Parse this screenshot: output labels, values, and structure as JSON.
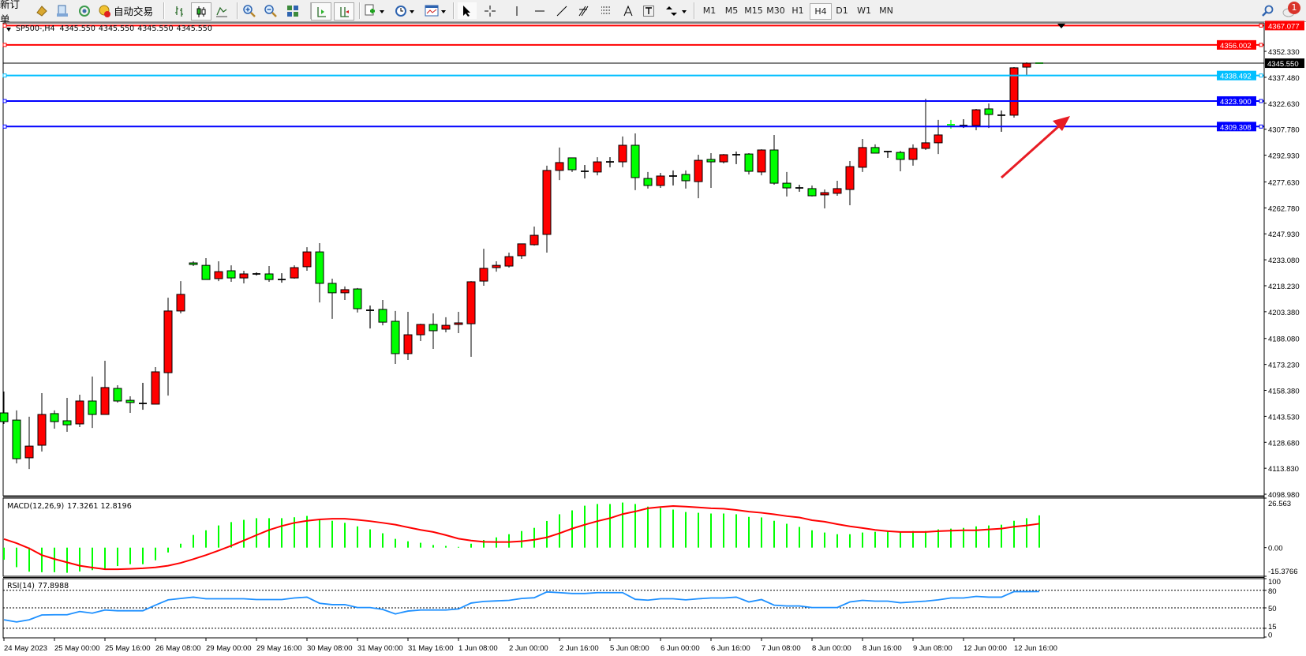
{
  "toolbar": {
    "new_order_label": "新订单",
    "auto_trading_label": "自动交易",
    "timeframes": [
      "M1",
      "M5",
      "M15",
      "M30",
      "H1",
      "H4",
      "D1",
      "W1",
      "MN"
    ],
    "active_timeframe": "H4",
    "notification_count": "1",
    "icons": [
      "new-order-icon",
      "market-watch-icon",
      "navigator-icon",
      "signals-icon",
      "auto-trading-icon",
      "bar-chart-icon",
      "candlestick-chart-icon",
      "line-chart-icon",
      "zoom-in-icon",
      "zoom-out-icon",
      "tile-windows-icon",
      "auto-scroll-icon",
      "chart-shift-icon",
      "indicators-icon",
      "periods-icon",
      "templates-icon",
      "cursor-icon",
      "crosshair-icon",
      "vertical-line-icon",
      "horizontal-line-icon",
      "trendline-icon",
      "fibonacci-icon",
      "fibonacci-fan-icon",
      "text-icon",
      "text-label-icon",
      "arrows-icon",
      "search-icon",
      "notifications-icon"
    ]
  },
  "chart": {
    "symbol_header": "SP500-,H4",
    "ohlc": [
      "4345.550",
      "4345.550",
      "4345.550",
      "4345.550"
    ],
    "colors": {
      "bull": "#ff0000",
      "bear": "#00ff00",
      "outline": "#000000",
      "level_red": "#ff0000",
      "level_lightblue": "#00bfff",
      "level_blue": "#0000ff",
      "arrow": "#e81c24",
      "macd_hist": "#00ff00",
      "macd_signal": "#ff0000",
      "rsi": "#1e90ff"
    },
    "levels": [
      {
        "price": 4367.077,
        "label": "4367.077",
        "color": "#ff0000"
      },
      {
        "price": 4356.002,
        "label": "4356.002",
        "color": "#ff0000"
      },
      {
        "price": 4338.492,
        "label": "4338.492",
        "color": "#00bfff"
      },
      {
        "price": 4323.9,
        "label": "4323.900",
        "color": "#0000ff"
      },
      {
        "price": 4309.308,
        "label": "4309.308",
        "color": "#0000ff"
      }
    ],
    "current_price": {
      "price": 4345.55,
      "label": "4345.550"
    }
  },
  "chart_data": [
    {
      "type": "candlestick",
      "title": "SP500-,H4",
      "price_range": [
        4098.1,
        4368.6
      ],
      "y_ticks": [
        "4352.330",
        "4337.480",
        "4322.630",
        "4307.780",
        "4292.930",
        "4277.630",
        "4262.780",
        "4247.930",
        "4233.080",
        "4218.230",
        "4203.380",
        "4188.080",
        "4173.230",
        "4158.380",
        "4143.530",
        "4128.680",
        "4113.830",
        "4098.980"
      ],
      "x_ticks": [
        {
          "bar": 0,
          "label": "24 May 2023"
        },
        {
          "bar": 4,
          "label": "25 May 00:00"
        },
        {
          "bar": 8,
          "label": "25 May 16:00"
        },
        {
          "bar": 12,
          "label": "26 May 08:00"
        },
        {
          "bar": 16,
          "label": "29 May 00:00"
        },
        {
          "bar": 20,
          "label": "29 May 16:00"
        },
        {
          "bar": 24,
          "label": "30 May 08:00"
        },
        {
          "bar": 28,
          "label": "31 May 00:00"
        },
        {
          "bar": 32,
          "label": "31 May 16:00"
        },
        {
          "bar": 36,
          "label": "1 Jun 08:00"
        },
        {
          "bar": 40,
          "label": "2 Jun 00:00"
        },
        {
          "bar": 44,
          "label": "2 Jun 16:00"
        },
        {
          "bar": 48,
          "label": "5 Jun 08:00"
        },
        {
          "bar": 52,
          "label": "6 Jun 00:00"
        },
        {
          "bar": 56,
          "label": "6 Jun 16:00"
        },
        {
          "bar": 60,
          "label": "7 Jun 08:00"
        },
        {
          "bar": 64,
          "label": "8 Jun 00:00"
        },
        {
          "bar": 68,
          "label": "8 Jun 16:00"
        },
        {
          "bar": 72,
          "label": "9 Jun 08:00"
        },
        {
          "bar": 76,
          "label": "12 Jun 00:00"
        },
        {
          "bar": 80,
          "label": "12 Jun 16:00"
        }
      ],
      "ohlc": [
        [
          4145.5,
          4157.7,
          4139.2,
          4140.5
        ],
        [
          4141.4,
          4146.9,
          4116.6,
          4119.3
        ],
        [
          4119.8,
          4143.3,
          4113.4,
          4126.5
        ],
        [
          4127.0,
          4156.8,
          4123.4,
          4144.6
        ],
        [
          4145.1,
          4146.9,
          4136.5,
          4140.5
        ],
        [
          4141.0,
          4154.1,
          4134.7,
          4138.7
        ],
        [
          4139.2,
          4155.9,
          4137.4,
          4152.3
        ],
        [
          4152.3,
          4166.3,
          4136.9,
          4144.6
        ],
        [
          4144.6,
          4175.3,
          4144.6,
          4160.0
        ],
        [
          4159.5,
          4161.3,
          4151.4,
          4152.3
        ],
        [
          4152.7,
          4155.0,
          4145.5,
          4151.4
        ],
        [
          4150.9,
          4162.7,
          4147.3,
          4150.9
        ],
        [
          4150.5,
          4171.7,
          4150.5,
          4169.0
        ],
        [
          4168.5,
          4211.4,
          4155.4,
          4203.8
        ],
        [
          4203.8,
          4220.9,
          4202.4,
          4213.3
        ],
        [
          4231.3,
          4232.2,
          4229.5,
          4230.4
        ],
        [
          4229.9,
          4234.0,
          4221.8,
          4221.8
        ],
        [
          4222.3,
          4232.2,
          4220.9,
          4226.3
        ],
        [
          4226.8,
          4229.9,
          4220.5,
          4222.7
        ],
        [
          4222.7,
          4226.8,
          4219.6,
          4225.0
        ],
        [
          4225.0,
          4225.9,
          4224.1,
          4225.0
        ],
        [
          4225.0,
          4229.5,
          4220.5,
          4221.8
        ],
        [
          4221.8,
          4225.4,
          4220.0,
          4221.8
        ],
        [
          4222.7,
          4229.9,
          4222.3,
          4228.6
        ],
        [
          4229.1,
          4240.3,
          4226.8,
          4237.6
        ],
        [
          4237.6,
          4242.6,
          4208.7,
          4219.6
        ],
        [
          4219.6,
          4222.3,
          4199.3,
          4214.2
        ],
        [
          4214.2,
          4217.8,
          4210.1,
          4216.0
        ],
        [
          4216.4,
          4216.9,
          4202.9,
          4205.1
        ],
        [
          4204.2,
          4206.9,
          4193.8,
          4204.2
        ],
        [
          4204.7,
          4210.1,
          4195.6,
          4197.4
        ],
        [
          4197.9,
          4203.8,
          4173.5,
          4179.4
        ],
        [
          4179.4,
          4203.3,
          4175.8,
          4190.2
        ],
        [
          4190.2,
          4196.5,
          4186.6,
          4196.1
        ],
        [
          4196.1,
          4202.4,
          4182.1,
          4192.5
        ],
        [
          4193.4,
          4200.2,
          4191.6,
          4195.6
        ],
        [
          4196.1,
          4203.3,
          4191.1,
          4197.0
        ],
        [
          4196.5,
          4220.9,
          4177.6,
          4220.5
        ],
        [
          4220.9,
          4239.4,
          4218.2,
          4228.2
        ],
        [
          4228.6,
          4232.2,
          4226.3,
          4229.9
        ],
        [
          4229.5,
          4237.2,
          4228.6,
          4234.9
        ],
        [
          4235.4,
          4242.2,
          4233.6,
          4242.2
        ],
        [
          4241.7,
          4252.1,
          4241.2,
          4247.1
        ],
        [
          4247.6,
          4286.9,
          4237.2,
          4284.2
        ],
        [
          4284.2,
          4297.3,
          4278.7,
          4288.7
        ],
        [
          4291.4,
          4291.4,
          4283.3,
          4284.6
        ],
        [
          4283.7,
          4287.3,
          4279.6,
          4283.7
        ],
        [
          4283.3,
          4291.8,
          4281.4,
          4289.1
        ],
        [
          4289.1,
          4291.8,
          4286.0,
          4289.1
        ],
        [
          4289.1,
          4303.6,
          4286.0,
          4298.6
        ],
        [
          4298.6,
          4305.4,
          4272.9,
          4280.1
        ],
        [
          4279.6,
          4283.3,
          4273.8,
          4275.6
        ],
        [
          4275.6,
          4282.8,
          4274.2,
          4281.0
        ],
        [
          4281.0,
          4284.2,
          4275.6,
          4281.0
        ],
        [
          4281.9,
          4284.2,
          4273.8,
          4278.3
        ],
        [
          4277.8,
          4293.2,
          4268.3,
          4290.0
        ],
        [
          4290.5,
          4294.1,
          4274.2,
          4289.1
        ],
        [
          4289.1,
          4293.6,
          4288.2,
          4293.2
        ],
        [
          4293.2,
          4295.0,
          4287.8,
          4293.2
        ],
        [
          4293.6,
          4294.1,
          4281.9,
          4283.7
        ],
        [
          4283.3,
          4296.3,
          4281.4,
          4295.9
        ],
        [
          4295.9,
          4304.5,
          4276.0,
          4276.9
        ],
        [
          4276.9,
          4283.3,
          4269.3,
          4274.2
        ],
        [
          4274.2,
          4276.0,
          4272.0,
          4274.2
        ],
        [
          4273.8,
          4275.6,
          4269.3,
          4269.7
        ],
        [
          4270.2,
          4273.3,
          4262.5,
          4271.5
        ],
        [
          4271.1,
          4278.3,
          4269.7,
          4273.8
        ],
        [
          4273.3,
          4289.6,
          4264.3,
          4286.4
        ],
        [
          4286.0,
          4302.2,
          4283.3,
          4297.3
        ],
        [
          4297.3,
          4299.1,
          4294.1,
          4294.1
        ],
        [
          4295.0,
          4295.4,
          4291.4,
          4295.0
        ],
        [
          4294.5,
          4295.4,
          4283.7,
          4290.5
        ],
        [
          4290.5,
          4299.1,
          4286.9,
          4296.8
        ],
        [
          4296.8,
          4325.2,
          4295.9,
          4300.0
        ],
        [
          4300.0,
          4313.1,
          4293.6,
          4304.5
        ],
        [
          4310.4,
          4313.1,
          4308.1,
          4310.3
        ],
        [
          4309.9,
          4313.5,
          4308.5,
          4309.9
        ],
        [
          4309.9,
          4319.4,
          4307.2,
          4318.9
        ],
        [
          4319.4,
          4322.5,
          4308.5,
          4316.2
        ],
        [
          4315.8,
          4318.5,
          4306.3,
          4315.8
        ],
        [
          4315.8,
          4343.3,
          4314.4,
          4342.9
        ],
        [
          4343.3,
          4346.0,
          4338.8,
          4345.55
        ],
        [
          4345.6,
          4345.6,
          4345.55,
          4345.55
        ]
      ]
    },
    {
      "type": "bar+line",
      "title": "MACD(12,26,9)",
      "values_text": "17.3261 12.8196",
      "ylim": [
        -15.3766,
        26.563
      ],
      "y_ticks": [
        "26.563",
        "0.00",
        "-15.3766"
      ],
      "histogram": [
        -6.5,
        -10.5,
        -12.9,
        -13.2,
        -13.2,
        -13.5,
        -12.8,
        -12.1,
        -11.8,
        -9.9,
        -8.9,
        -8.9,
        -6.8,
        -2.6,
        2.1,
        6.8,
        9.3,
        11.9,
        13.7,
        14.9,
        15.8,
        15.8,
        15.8,
        16.3,
        17.0,
        15.0,
        14.4,
        13.3,
        11.4,
        9.8,
        7.7,
        4.7,
        3.4,
        2.6,
        1.4,
        0.9,
        0.4,
        2.1,
        4.1,
        5.5,
        7.2,
        8.9,
        10.6,
        14.3,
        17.9,
        20.0,
        22.5,
        23.4,
        23.4,
        24.2,
        23.4,
        22.0,
        21.3,
        20.4,
        19.1,
        18.7,
        18.3,
        18.3,
        17.9,
        16.5,
        16.2,
        14.4,
        12.8,
        11.1,
        9.3,
        8.1,
        7.2,
        7.2,
        8.1,
        8.5,
        8.9,
        8.5,
        8.9,
        8.9,
        9.8,
        10.2,
        10.6,
        11.4,
        11.9,
        12.3,
        14.4,
        15.8,
        17.3261
      ],
      "signal": [
        4.6,
        2.4,
        -0.4,
        -4.0,
        -6.1,
        -7.9,
        -9.7,
        -10.7,
        -11.6,
        -11.6,
        -11.4,
        -11.1,
        -10.6,
        -9.7,
        -8.2,
        -6.2,
        -4.0,
        -1.6,
        1.0,
        3.8,
        6.7,
        9.5,
        11.6,
        13.3,
        14.4,
        15.1,
        15.5,
        15.5,
        14.9,
        14.2,
        13.3,
        12.3,
        10.9,
        9.5,
        8.4,
        6.7,
        4.8,
        3.8,
        3.1,
        3.0,
        3.0,
        3.4,
        4.2,
        5.5,
        7.7,
        10.2,
        12.3,
        14.2,
        15.8,
        18.0,
        19.4,
        21.1,
        21.8,
        22.3,
        22.0,
        21.6,
        21.1,
        20.9,
        20.2,
        19.3,
        18.7,
        17.9,
        16.9,
        16.2,
        14.7,
        13.9,
        12.6,
        11.4,
        10.5,
        9.5,
        8.8,
        8.4,
        8.4,
        8.4,
        8.8,
        9.1,
        9.3,
        9.3,
        9.8,
        10.2,
        11.2,
        11.9,
        12.8196
      ]
    },
    {
      "type": "line",
      "title": "RSI(14)",
      "values_text": "77.8988",
      "ylim": [
        0,
        100
      ],
      "y_ticks": [
        "100",
        "80",
        "50",
        "15",
        "0"
      ],
      "levels": [
        80,
        50,
        15
      ],
      "values": [
        29.6,
        25.9,
        29.6,
        37.8,
        38.2,
        38.2,
        43.7,
        40.9,
        46.3,
        45.0,
        45.0,
        45.0,
        54.6,
        63.7,
        66.0,
        68.3,
        65.5,
        65.5,
        65.5,
        65.5,
        64.2,
        64.2,
        64.2,
        66.9,
        68.3,
        57.8,
        55.5,
        55.5,
        50.5,
        50.5,
        47.3,
        39.6,
        44.5,
        46.3,
        46.3,
        46.3,
        48.1,
        58.2,
        61.0,
        61.9,
        62.8,
        66.0,
        67.3,
        77.3,
        76.0,
        74.6,
        74.6,
        76.0,
        76.0,
        76.0,
        64.6,
        63.2,
        65.5,
        65.5,
        63.7,
        65.5,
        66.9,
        66.9,
        68.3,
        60.1,
        64.2,
        54.6,
        53.2,
        53.2,
        50.5,
        50.5,
        50.5,
        60.1,
        62.8,
        61.5,
        61.5,
        58.7,
        60.1,
        61.5,
        63.7,
        66.9,
        66.9,
        69.6,
        68.3,
        68.3,
        77.8,
        77.8,
        77.8988
      ]
    }
  ]
}
